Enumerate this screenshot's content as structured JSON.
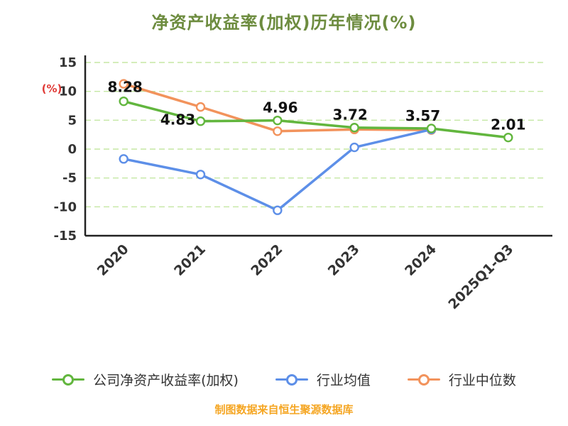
{
  "footer_note": "制图数据来自恒生聚源数据库",
  "colors": {
    "title": "#6d8c3f",
    "axis": "#222222",
    "grid": "#c5e7a4",
    "tick_label": "#333333",
    "data_label": "#111111",
    "ylabel": "#e03a36",
    "footer": "#f5a623",
    "legend_text": "#333333",
    "background": "#ffffff"
  },
  "chart_data": {
    "type": "line",
    "title": "净资产收益率(加权)历年情况(%)",
    "ylabel": "(%)",
    "xlabel": "",
    "ylim": [
      -15,
      15
    ],
    "yticks": [
      15,
      10,
      5,
      0,
      -5,
      -10,
      -15
    ],
    "grid": true,
    "grid_style": "dashed",
    "legend_position": "bottom",
    "categories": [
      "2020",
      "2021",
      "2022",
      "2023",
      "2024",
      "2025Q1-Q3"
    ],
    "series": [
      {
        "name": "公司净资产收益率(加权)",
        "color": "#62b63e",
        "marker": "open-circle",
        "data_labels": true,
        "values": [
          8.28,
          4.83,
          4.96,
          3.72,
          3.57,
          2.01
        ]
      },
      {
        "name": "行业均值",
        "color": "#5d8fe8",
        "marker": "open-circle",
        "data_labels": false,
        "values": [
          -1.7,
          -4.4,
          -10.6,
          0.3,
          3.4,
          null
        ]
      },
      {
        "name": "行业中位数",
        "color": "#f2935c",
        "marker": "open-circle",
        "data_labels": false,
        "values": [
          11.3,
          7.3,
          3.1,
          3.4,
          3.3,
          null
        ]
      }
    ]
  }
}
